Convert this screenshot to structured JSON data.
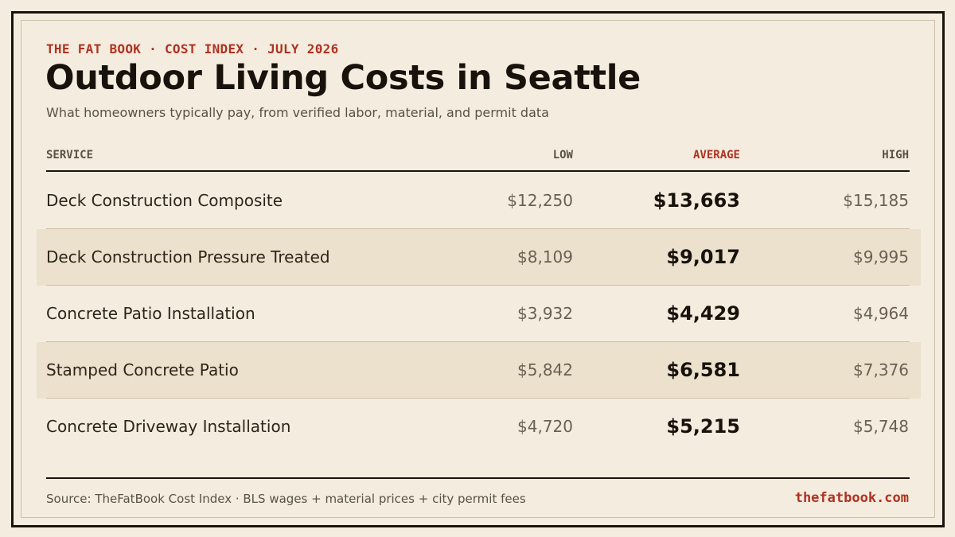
{
  "header": {
    "eyebrow": "THE FAT BOOK · COST INDEX · JULY 2026",
    "title": "Outdoor Living Costs in Seattle",
    "subtitle": "What homeowners typically pay, from verified labor, material, and permit data"
  },
  "table": {
    "columns": {
      "service": "SERVICE",
      "low": "LOW",
      "average": "AVERAGE",
      "high": "HIGH"
    },
    "rows": [
      {
        "service": "Deck Construction Composite",
        "low": "$12,250",
        "average": "$13,663",
        "high": "$15,185"
      },
      {
        "service": "Deck Construction Pressure Treated",
        "low": "$8,109",
        "average": "$9,017",
        "high": "$9,995"
      },
      {
        "service": "Concrete Patio Installation",
        "low": "$3,932",
        "average": "$4,429",
        "high": "$4,964"
      },
      {
        "service": "Stamped Concrete Patio",
        "low": "$5,842",
        "average": "$6,581",
        "high": "$7,376"
      },
      {
        "service": "Concrete Driveway Installation",
        "low": "$4,720",
        "average": "$5,215",
        "high": "$5,748"
      }
    ]
  },
  "footer": {
    "source": "Source: TheFatBook Cost Index · BLS wages + material prices + city permit fees",
    "site": "thefatbook.com"
  },
  "colors": {
    "background": "#f4ecde",
    "accent": "#b03221",
    "ink": "#17120b",
    "shaded_row": "#ece1cd"
  }
}
